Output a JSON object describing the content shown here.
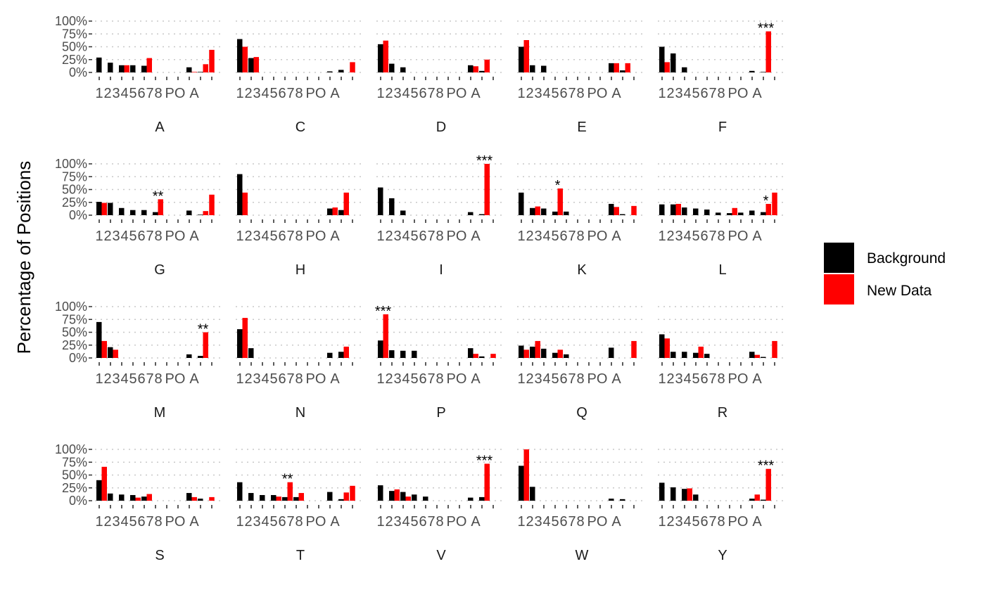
{
  "chart_data": {
    "type": "bar",
    "facet_layout": "5 columns x 4 rows",
    "ylabel": "Percentage of Positions",
    "ylim": [
      0,
      1
    ],
    "y_ticks": [
      "0%",
      "25%",
      "50%",
      "75%",
      "100%"
    ],
    "categories": [
      "1",
      "2",
      "3",
      "4",
      "5",
      "6",
      "7",
      "8",
      "PO",
      "A"
    ],
    "grid": "dotted horizontal",
    "legend_position": "right",
    "series_names": [
      "Background",
      "New Data"
    ],
    "colors": {
      "Background": "#000000",
      "New Data": "#ff0000"
    },
    "facets": [
      {
        "label": "A",
        "bg": [
          0.29,
          0.19,
          0.14,
          0.14,
          0.13,
          0,
          0,
          0,
          0.1,
          0.01
        ],
        "nd": [
          0,
          0,
          0.14,
          0,
          0.28,
          0,
          0,
          0,
          0.01,
          0.16
        ],
        "extra_nd": 0.44,
        "sig": "",
        "sig_pos": null
      },
      {
        "label": "C",
        "bg": [
          0.65,
          0.28,
          0,
          0,
          0,
          0,
          0,
          0,
          0.02,
          0.05
        ],
        "nd": [
          0.5,
          0.3,
          0,
          0,
          0,
          0,
          0,
          0,
          0,
          0
        ],
        "extra_nd": 0.2,
        "sig": "",
        "sig_pos": null
      },
      {
        "label": "D",
        "bg": [
          0.55,
          0.17,
          0.1,
          0,
          0,
          0,
          0,
          0,
          0.14,
          0.03
        ],
        "nd": [
          0.62,
          0,
          0,
          0,
          0,
          0,
          0,
          0,
          0.12,
          0.25
        ],
        "extra_nd": 0,
        "sig": "",
        "sig_pos": null
      },
      {
        "label": "E",
        "bg": [
          0.5,
          0.14,
          0.13,
          0,
          0,
          0,
          0,
          0,
          0.18,
          0.04
        ],
        "nd": [
          0.63,
          0,
          0,
          0,
          0,
          0,
          0,
          0,
          0.18,
          0.18
        ],
        "extra_nd": 0,
        "sig": "",
        "sig_pos": null
      },
      {
        "label": "F",
        "bg": [
          0.5,
          0.37,
          0.1,
          0,
          0,
          0,
          0,
          0,
          0.03,
          0.01
        ],
        "nd": [
          0.2,
          0,
          0,
          0,
          0,
          0,
          0,
          0,
          0,
          0.8
        ],
        "extra_nd": 0,
        "sig": "***",
        "sig_pos": 9
      },
      {
        "label": "G",
        "bg": [
          0.26,
          0.24,
          0.14,
          0.1,
          0.1,
          0.06,
          0,
          0,
          0.09,
          0.01
        ],
        "nd": [
          0.24,
          0,
          0,
          0,
          0,
          0.31,
          0,
          0,
          0,
          0.08
        ],
        "extra_nd": 0.4,
        "sig": "**",
        "sig_pos": 5
      },
      {
        "label": "H",
        "bg": [
          0.8,
          0,
          0,
          0,
          0,
          0,
          0,
          0,
          0.13,
          0.1
        ],
        "nd": [
          0.44,
          0,
          0,
          0,
          0,
          0,
          0,
          0,
          0.15,
          0.44
        ],
        "extra_nd": 0,
        "sig": "",
        "sig_pos": null
      },
      {
        "label": "I",
        "bg": [
          0.54,
          0.33,
          0.09,
          0,
          0,
          0,
          0,
          0,
          0.06,
          0.02
        ],
        "nd": [
          0,
          0,
          0,
          0,
          0,
          0,
          0,
          0,
          0,
          1.0
        ],
        "extra_nd": 0,
        "sig": "***",
        "sig_pos": 9
      },
      {
        "label": "K",
        "bg": [
          0.44,
          0.14,
          0.13,
          0.07,
          0.07,
          0,
          0,
          0,
          0.22,
          0.02
        ],
        "nd": [
          0,
          0.17,
          0,
          0.52,
          0,
          0,
          0,
          0,
          0.16,
          0
        ],
        "extra_nd": 0.18,
        "sig": "*",
        "sig_pos": 3
      },
      {
        "label": "L",
        "bg": [
          0.21,
          0.21,
          0.15,
          0.13,
          0.11,
          0.05,
          0.04,
          0.05,
          0.09,
          0.06
        ],
        "nd": [
          0,
          0.22,
          0,
          0,
          0,
          0,
          0.14,
          0,
          0,
          0.22
        ],
        "extra_nd": 0.44,
        "sig": "*",
        "sig_pos": 9
      },
      {
        "label": "M",
        "bg": [
          0.7,
          0.21,
          0,
          0,
          0,
          0,
          0,
          0,
          0.07,
          0.04
        ],
        "nd": [
          0.33,
          0.16,
          0,
          0,
          0,
          0,
          0,
          0,
          0,
          0.5
        ],
        "extra_nd": 0,
        "sig": "**",
        "sig_pos": 9
      },
      {
        "label": "N",
        "bg": [
          0.56,
          0.19,
          0,
          0,
          0,
          0,
          0,
          0,
          0.1,
          0.12
        ],
        "nd": [
          0.78,
          0,
          0,
          0,
          0,
          0,
          0,
          0,
          0,
          0.22
        ],
        "extra_nd": 0,
        "sig": "",
        "sig_pos": null
      },
      {
        "label": "P",
        "bg": [
          0.34,
          0.15,
          0.14,
          0.14,
          0,
          0,
          0,
          0,
          0.19,
          0.03
        ],
        "nd": [
          0.85,
          0,
          0,
          0,
          0,
          0,
          0,
          0,
          0.08,
          0
        ],
        "extra_nd": 0.08,
        "sig": "***",
        "sig_pos": 0
      },
      {
        "label": "Q",
        "bg": [
          0.24,
          0.22,
          0.18,
          0.1,
          0.07,
          0,
          0,
          0,
          0.2,
          0
        ],
        "nd": [
          0.16,
          0.33,
          0,
          0.16,
          0,
          0,
          0,
          0,
          0,
          0
        ],
        "extra_nd": 0.33,
        "sig": "",
        "sig_pos": null
      },
      {
        "label": "R",
        "bg": [
          0.46,
          0.12,
          0.12,
          0.1,
          0.08,
          0,
          0,
          0,
          0.12,
          0.02
        ],
        "nd": [
          0.38,
          0,
          0,
          0.22,
          0,
          0,
          0,
          0,
          0.06,
          0
        ],
        "extra_nd": 0.33,
        "sig": "",
        "sig_pos": null
      },
      {
        "label": "S",
        "bg": [
          0.4,
          0.14,
          0.12,
          0.11,
          0.08,
          0,
          0,
          0,
          0.15,
          0.04
        ],
        "nd": [
          0.66,
          0,
          0,
          0.06,
          0.13,
          0,
          0,
          0,
          0.07,
          0
        ],
        "extra_nd": 0.07,
        "sig": "",
        "sig_pos": null
      },
      {
        "label": "T",
        "bg": [
          0.36,
          0.15,
          0.11,
          0.11,
          0.07,
          0.07,
          0,
          0,
          0.17,
          0.03
        ],
        "nd": [
          0,
          0,
          0,
          0.08,
          0.36,
          0.15,
          0,
          0,
          0,
          0.16
        ],
        "extra_nd": 0.29,
        "sig": "**",
        "sig_pos": 4
      },
      {
        "label": "V",
        "bg": [
          0.3,
          0.19,
          0.17,
          0.12,
          0.08,
          0,
          0,
          0,
          0.06,
          0.07
        ],
        "nd": [
          0,
          0.22,
          0.08,
          0,
          0,
          0,
          0,
          0,
          0,
          0.72
        ],
        "extra_nd": 0,
        "sig": "***",
        "sig_pos": 9
      },
      {
        "label": "W",
        "bg": [
          0.68,
          0.27,
          0,
          0,
          0,
          0,
          0,
          0,
          0.04,
          0.03
        ],
        "nd": [
          1.0,
          0,
          0,
          0,
          0,
          0,
          0,
          0,
          0,
          0
        ],
        "extra_nd": 0,
        "sig": "",
        "sig_pos": null
      },
      {
        "label": "Y",
        "bg": [
          0.35,
          0.26,
          0.23,
          0.12,
          0,
          0,
          0,
          0,
          0.04,
          0.02
        ],
        "nd": [
          0,
          0,
          0.24,
          0,
          0,
          0,
          0,
          0,
          0.12,
          0.62
        ],
        "extra_nd": 0,
        "sig": "***",
        "sig_pos": 9
      }
    ]
  }
}
